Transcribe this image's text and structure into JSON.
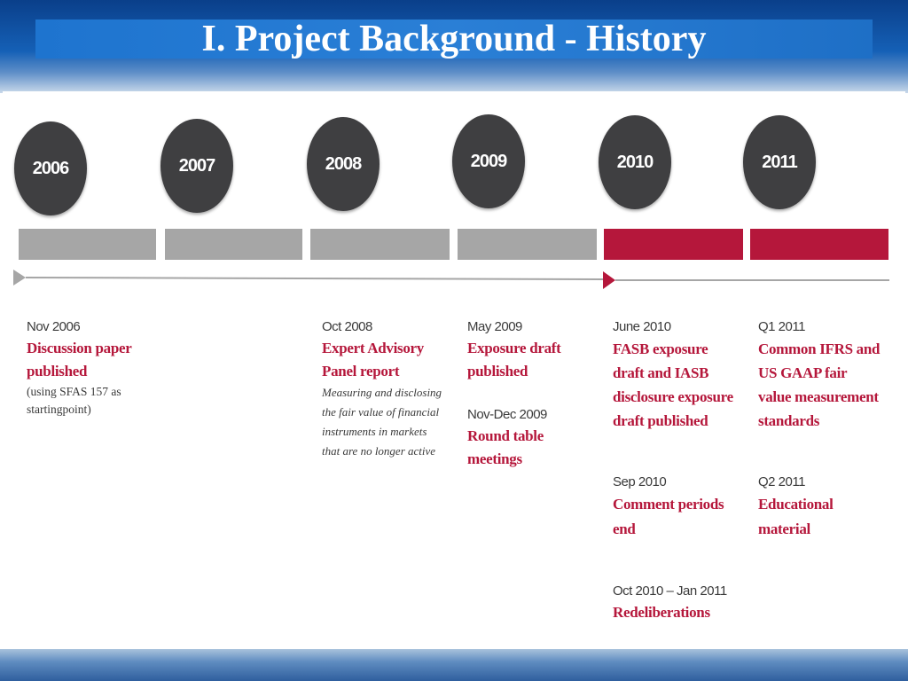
{
  "slide": {
    "title": "I. Project Background - History"
  },
  "colors": {
    "circle": "#3f3f41",
    "bar_gray": "#a6a6a6",
    "bar_red": "#b5173b",
    "event_text": "#b5173b"
  },
  "timeline": {
    "years": [
      "2006",
      "2007",
      "2008",
      "2009",
      "2010",
      "2011"
    ],
    "bar_status": [
      "past",
      "past",
      "past",
      "past",
      "current",
      "current"
    ]
  },
  "events": {
    "e2006": {
      "date": "Nov 2006",
      "title_lines": [
        "Discussion paper",
        "published"
      ],
      "note_lines": [
        "(using SFAS 157 as",
        "startingpoint)"
      ]
    },
    "e2008": {
      "date": "Oct 2008",
      "title_lines": [
        "Expert Advisory",
        "Panel report"
      ],
      "note_lines": [
        "Measuring and disclosing",
        "the fair value of financial",
        "instruments in markets",
        "that are no longer active"
      ]
    },
    "e2009a": {
      "date": "May 2009",
      "title_lines": [
        "Exposure draft",
        "published"
      ]
    },
    "e2009b": {
      "date": "Nov-Dec 2009",
      "title_lines": [
        "Round table",
        "meetings"
      ]
    },
    "e2010a": {
      "date": "June 2010",
      "title_lines": [
        "FASB exposure",
        "draft and IASB",
        "disclosure exposure",
        "draft published"
      ]
    },
    "e2010b": {
      "date": "Sep 2010",
      "title_lines": [
        "Comment periods",
        "end"
      ]
    },
    "e2010c": {
      "date": "Oct 2010 – Jan 2011",
      "title_lines": [
        "Redeliberations"
      ]
    },
    "e2011a": {
      "date": "Q1 2011",
      "title_lines": [
        "Common IFRS and",
        "US GAAP fair",
        "value measurement",
        "standards"
      ]
    },
    "e2011b": {
      "date": "Q2 2011",
      "title_lines": [
        "Educational",
        "material"
      ]
    }
  }
}
